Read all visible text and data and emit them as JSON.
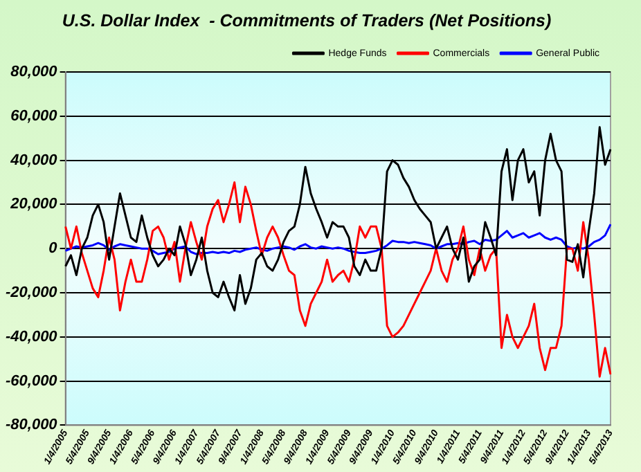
{
  "chart_data": {
    "type": "line",
    "title": "U.S. Dollar Index  - Commitments of Traders (Net Positions)",
    "categories": [
      "1/4/2005",
      null,
      null,
      null,
      "5/4/2005",
      null,
      null,
      null,
      "9/4/2005",
      null,
      null,
      null,
      "1/4/2006",
      null,
      null,
      null,
      "5/4/2006",
      null,
      null,
      null,
      "9/4/2006",
      null,
      null,
      null,
      "1/4/2007",
      null,
      null,
      null,
      "5/4/2007",
      null,
      null,
      null,
      "9/4/2007",
      null,
      null,
      null,
      "1/4/2008",
      null,
      null,
      null,
      "5/4/2008",
      null,
      null,
      null,
      "9/4/2008",
      null,
      null,
      null,
      "1/4/2009",
      null,
      null,
      null,
      "5/4/2009",
      null,
      null,
      null,
      "9/4/2009",
      null,
      null,
      null,
      "1/4/2010",
      null,
      null,
      null,
      "5/4/2010",
      null,
      null,
      null,
      "9/4/2010",
      null,
      null,
      null,
      "1/4/2011",
      null,
      null,
      null,
      "5/4/2011",
      null,
      null,
      null,
      "9/4/2011",
      null,
      null,
      null,
      "1/4/2012",
      null,
      null,
      null,
      "5/4/2012",
      null,
      null,
      null,
      "9/4/2012",
      null,
      null,
      null,
      "1/4/2013",
      null,
      null,
      null,
      "5/4/2013"
    ],
    "series": [
      {
        "name": "Hedge Funds",
        "color": "#000000",
        "values": [
          -8000,
          -3000,
          -12000,
          0,
          5000,
          15000,
          20000,
          12000,
          -5000,
          10000,
          25000,
          15000,
          5000,
          3000,
          15000,
          5000,
          -3000,
          -8000,
          -5000,
          0,
          -3000,
          10000,
          2000,
          -12000,
          -5000,
          5000,
          -10000,
          -20000,
          -22000,
          -15000,
          -22000,
          -28000,
          -12000,
          -25000,
          -18000,
          -5000,
          -2000,
          -8000,
          -10000,
          -5000,
          3000,
          8000,
          10000,
          20000,
          37000,
          25000,
          18000,
          12000,
          5000,
          12000,
          10000,
          10000,
          5000,
          -8000,
          -12000,
          -5000,
          -10000,
          -10000,
          0,
          35000,
          40000,
          38000,
          32000,
          28000,
          22000,
          18000,
          15000,
          12000,
          0,
          5000,
          10000,
          0,
          -5000,
          5000,
          -15000,
          -8000,
          -5000,
          12000,
          5000,
          -3000,
          35000,
          45000,
          22000,
          40000,
          45000,
          30000,
          35000,
          15000,
          40000,
          52000,
          40000,
          35000,
          -5000,
          -6000,
          2000,
          -13000,
          8000,
          25000,
          55000,
          38000,
          45000
        ]
      },
      {
        "name": "Commercials",
        "color": "#ff0000",
        "values": [
          10000,
          0,
          10000,
          -2000,
          -10000,
          -18000,
          -22000,
          -10000,
          5000,
          -5000,
          -28000,
          -15000,
          -5000,
          -15000,
          -15000,
          -5000,
          8000,
          10000,
          5000,
          -5000,
          3000,
          -15000,
          0,
          12000,
          3000,
          -5000,
          10000,
          18000,
          22000,
          12000,
          20000,
          30000,
          12000,
          28000,
          20000,
          8000,
          -3000,
          5000,
          10000,
          5000,
          -3000,
          -10000,
          -12000,
          -28000,
          -35000,
          -25000,
          -20000,
          -15000,
          -5000,
          -15000,
          -12000,
          -10000,
          -15000,
          -5000,
          10000,
          5000,
          10000,
          10000,
          0,
          -35000,
          -40000,
          -38000,
          -35000,
          -30000,
          -25000,
          -20000,
          -15000,
          -10000,
          0,
          -10000,
          -15000,
          -5000,
          0,
          10000,
          -5000,
          -12000,
          0,
          -10000,
          -3000,
          0,
          -45000,
          -30000,
          -40000,
          -45000,
          -40000,
          -35000,
          -25000,
          -45000,
          -55000,
          -45000,
          -45000,
          -35000,
          0,
          0,
          -10000,
          12000,
          -5000,
          -30000,
          -58000,
          -45000,
          -57000
        ]
      },
      {
        "name": "General Public",
        "color": "#0000ff",
        "values": [
          -1000,
          0,
          1000,
          500,
          1000,
          1500,
          2500,
          1500,
          -500,
          1000,
          2000,
          1500,
          1000,
          500,
          0,
          0,
          -1000,
          -2500,
          -2000,
          -1500,
          0,
          500,
          1000,
          -1500,
          -2500,
          -2000,
          -2000,
          -1500,
          -2000,
          -1500,
          -2000,
          -1000,
          -1500,
          -500,
          0,
          500,
          -500,
          -1000,
          0,
          500,
          1000,
          500,
          -500,
          1000,
          2000,
          500,
          0,
          1000,
          500,
          0,
          500,
          0,
          -1000,
          -1500,
          -2000,
          -2000,
          -1500,
          -1000,
          0,
          1500,
          3500,
          3000,
          3000,
          2500,
          3000,
          2500,
          2000,
          1500,
          0,
          1000,
          2000,
          2000,
          2500,
          2000,
          3000,
          3500,
          2000,
          4000,
          3500,
          4000,
          6000,
          8000,
          5000,
          6000,
          7000,
          5000,
          6000,
          7000,
          5000,
          4000,
          5000,
          4000,
          1000,
          0,
          500,
          0,
          1000,
          3000,
          4000,
          6000,
          11000
        ]
      }
    ],
    "ylim": [
      -80000,
      80000
    ],
    "yticks": [
      {
        "value": -80000,
        "label": "-80,000"
      },
      {
        "value": -60000,
        "label": "-60,000"
      },
      {
        "value": -40000,
        "label": "-40,000"
      },
      {
        "value": -20000,
        "label": "-20,000"
      },
      0,
      {
        "value": 20000,
        "label": "20,000"
      },
      {
        "value": 40000,
        "label": "40,000"
      },
      {
        "value": 60000,
        "label": "60,000"
      },
      {
        "value": 80000,
        "label": "80,000"
      }
    ],
    "grid": "y",
    "legend": "top",
    "marker": "none",
    "line_style": "solid"
  }
}
